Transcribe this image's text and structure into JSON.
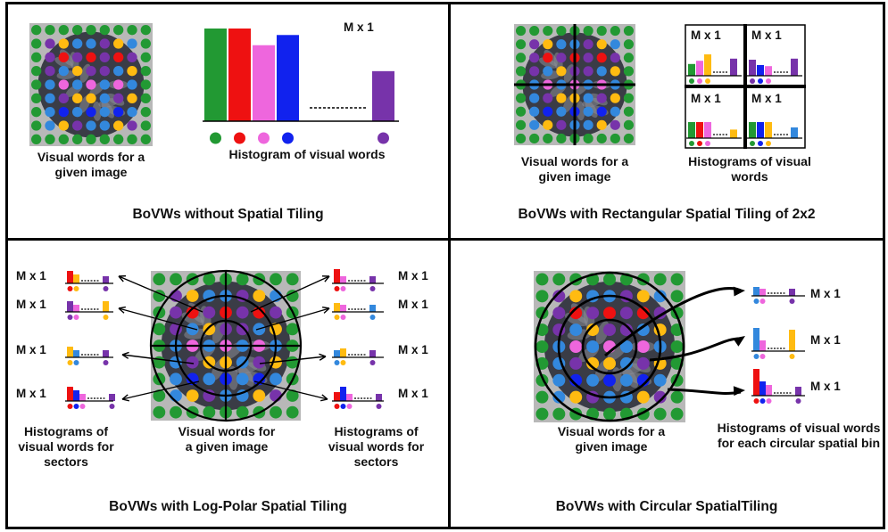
{
  "palette": {
    "green": "#229933",
    "red": "#ee1111",
    "pink": "#ee66dd",
    "blue": "#1122ee",
    "gold": "#ffbb11",
    "purple": "#7733aa",
    "lightblue": "#3388dd",
    "tile_bg": "#b8b8b8",
    "texture_dark": "#3a3c46"
  },
  "panels": [
    {
      "caption": "BoVWs without Spatial Tiling",
      "image_label": "Visual words for a given image",
      "histogram_label": "Histogram of visual words",
      "histogram_size": "M x 1",
      "histogram": {
        "values": [
          1.0,
          1.0,
          0.82,
          0.93,
          0.54
        ],
        "colors": [
          "green",
          "red",
          "pink",
          "blue",
          "purple"
        ]
      }
    },
    {
      "caption": "BoVWs with Rectangular Spatial Tiling of 2x2",
      "image_label": "Visual words for a given image",
      "histogram_label": "Histograms of visual words",
      "cell_size_label": "M x 1",
      "cells": [
        {
          "values": [
            0.55,
            0.7,
            1.0,
            0.8
          ],
          "colors": [
            "green",
            "pink",
            "gold",
            "purple"
          ]
        },
        {
          "values": [
            0.75,
            0.5,
            0.45,
            0.8
          ],
          "colors": [
            "purple",
            "blue",
            "pink",
            "purple"
          ]
        },
        {
          "values": [
            0.75,
            0.75,
            0.75,
            0.4
          ],
          "colors": [
            "green",
            "red",
            "pink",
            "gold"
          ]
        },
        {
          "values": [
            0.75,
            0.75,
            0.75,
            0.5
          ],
          "colors": [
            "green",
            "blue",
            "gold",
            "lightblue"
          ]
        }
      ]
    },
    {
      "caption": "BoVWs with Log-Polar Spatial Tiling",
      "left_label": "Histograms of visual words for sectors",
      "center_label": "Visual words for a given image",
      "right_label": "Histograms of visual words for sectors",
      "mini_size_label": "M x 1"
    },
    {
      "caption": "BoVWs with Circular SpatialTiling",
      "image_label": "Visual words for a given image",
      "histogram_label": "Histograms of visual words for each circular spatial bin",
      "mini_size_label": "M x 1"
    }
  ]
}
